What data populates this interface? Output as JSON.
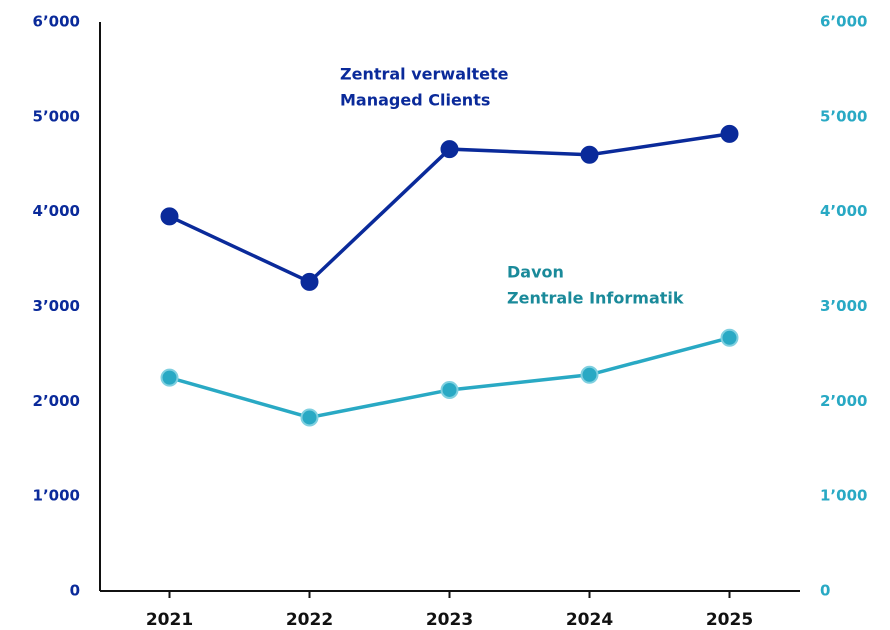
{
  "chart_data": {
    "type": "line",
    "categories": [
      "2021",
      "2022",
      "2023",
      "2024",
      "2025"
    ],
    "series": [
      {
        "name": "Zentral verwaltete Managed Clients",
        "label_lines": [
          "Zentral verwaltete",
          "Managed Clients"
        ],
        "color": "#0a2a9a",
        "label_color": "#0a2a9a",
        "values": [
          3950,
          3260,
          4660,
          4600,
          4820
        ]
      },
      {
        "name": "Davon Zentrale Informatik",
        "label_lines": [
          "Davon",
          "Zentrale Informatik"
        ],
        "color": "#29a9c4",
        "label_color": "#1a8a9a",
        "axis": "y2",
        "values": [
          2250,
          1830,
          2120,
          2280,
          2670
        ]
      }
    ],
    "ylim": [
      0,
      6000
    ],
    "yticks": [
      0,
      {
        "value": 1000,
        "label": "1’000"
      },
      {
        "value": 2000,
        "label": "2’000"
      },
      {
        "value": 3000,
        "label": "3’000"
      },
      {
        "value": 4000,
        "label": "4’000"
      },
      {
        "value": 5000,
        "label": "5’000"
      },
      {
        "value": 6000,
        "label": "6’000"
      }
    ],
    "y2lim": [
      0,
      6000
    ],
    "y2ticks": [
      0,
      {
        "value": 1000,
        "label": "1’000"
      },
      {
        "value": 2000,
        "label": "2’000"
      },
      {
        "value": 3000,
        "label": "3’000"
      },
      {
        "value": 4000,
        "label": "4’000"
      },
      {
        "value": 5000,
        "label": "5’000"
      },
      {
        "value": 6000,
        "label": "6’000"
      }
    ],
    "grid": false
  }
}
